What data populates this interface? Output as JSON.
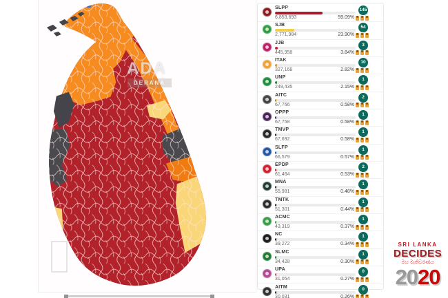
{
  "map": {
    "watermark_line1": "ADA",
    "watermark_line2": "DERANA",
    "region_colors": {
      "slpp_red": "#b2222b",
      "itak_orange": "#f68b1f",
      "sjb_yellow": "#f9d678",
      "undeclared_gray": "#4a4a4e",
      "epdp_blue": "#3b72c0",
      "division_border": "#ffe4e1"
    }
  },
  "results_panel": {
    "seat_badge_color": "#0b6a5b",
    "parties": [
      {
        "abbr": "SLPP",
        "votes": "6,853,693",
        "percent": "59.09%",
        "percent_value": 59.09,
        "seats": "145",
        "color": "#8d1b24",
        "bar_color": "#a91d2a"
      },
      {
        "abbr": "SJB",
        "votes": "2,771,984",
        "percent": "23.90%",
        "percent_value": 23.9,
        "seats": "54",
        "color": "#2f9e41",
        "bar_color": "#f2cf4a"
      },
      {
        "abbr": "JJB",
        "votes": "445,958",
        "percent": "3.84%",
        "percent_value": 3.84,
        "seats": "3",
        "color": "#bb2069",
        "bar_color": "#c41e3a"
      },
      {
        "abbr": "ITAK",
        "votes": "327,168",
        "percent": "2.82%",
        "percent_value": 2.82,
        "seats": "10",
        "color": "#f0a13a",
        "bar_color": "#f7941d"
      },
      {
        "abbr": "UNP",
        "votes": "249,435",
        "percent": "2.15%",
        "percent_value": 2.15,
        "seats": "1",
        "color": "#1e8e3e",
        "bar_color": "#1e8e3e"
      },
      {
        "abbr": "AITC",
        "votes": "67,766",
        "percent": "0.58%",
        "percent_value": 0.58,
        "seats": "2",
        "color": "#454545",
        "bar_color": "#b8860b"
      },
      {
        "abbr": "OPPP",
        "votes": "67,758",
        "percent": "0.58%",
        "percent_value": 0.58,
        "seats": "1",
        "color": "#4a2358",
        "bar_color": "#4a2358"
      },
      {
        "abbr": "TMVP",
        "votes": "67,692",
        "percent": "0.58%",
        "percent_value": 0.58,
        "seats": "1",
        "color": "#26262a",
        "bar_color": "#26262a"
      },
      {
        "abbr": "SLFP",
        "votes": "66,579",
        "percent": "0.57%",
        "percent_value": 0.57,
        "seats": "1",
        "color": "#2356a8",
        "bar_color": "#2356a8"
      },
      {
        "abbr": "EPDP",
        "votes": "61,464",
        "percent": "0.53%",
        "percent_value": 0.53,
        "seats": "2",
        "color": "#cf2030",
        "bar_color": "#cf2030"
      },
      {
        "abbr": "MNA",
        "votes": "55,981",
        "percent": "0.48%",
        "percent_value": 0.48,
        "seats": "1",
        "color": "#203c33",
        "bar_color": "#203c33"
      },
      {
        "abbr": "TMTK",
        "votes": "51,301",
        "percent": "0.44%",
        "percent_value": 0.44,
        "seats": "1",
        "color": "#2b2b2b",
        "bar_color": "#2b2b2b"
      },
      {
        "abbr": "ACMC",
        "votes": "43,319",
        "percent": "0.37%",
        "percent_value": 0.37,
        "seats": "1",
        "color": "#3a9c46",
        "bar_color": "#3a9c46"
      },
      {
        "abbr": "NC",
        "votes": "39,272",
        "percent": "0.34%",
        "percent_value": 0.34,
        "seats": "1",
        "color": "#1c1c1c",
        "bar_color": "#1c1c1c"
      },
      {
        "abbr": "SLMC",
        "votes": "34,428",
        "percent": "0.30%",
        "percent_value": 0.3,
        "seats": "1",
        "color": "#1f7a33",
        "bar_color": "#1f7a33"
      },
      {
        "abbr": "UPA",
        "votes": "31,054",
        "percent": "0.27%",
        "percent_value": 0.27,
        "seats": "0",
        "color": "#b14a92",
        "bar_color": "#b14a92"
      },
      {
        "abbr": "AITM",
        "votes": "30,031",
        "percent": "0.26%",
        "percent_value": 0.26,
        "seats": "0",
        "color": "#303030",
        "bar_color": "#303030"
      }
    ]
  },
  "logo": {
    "top": "SRI LANKA",
    "middle": "DECIDES",
    "sinhala": "මහ මැතිවරණය",
    "year_first": "20",
    "year_second": "20"
  }
}
